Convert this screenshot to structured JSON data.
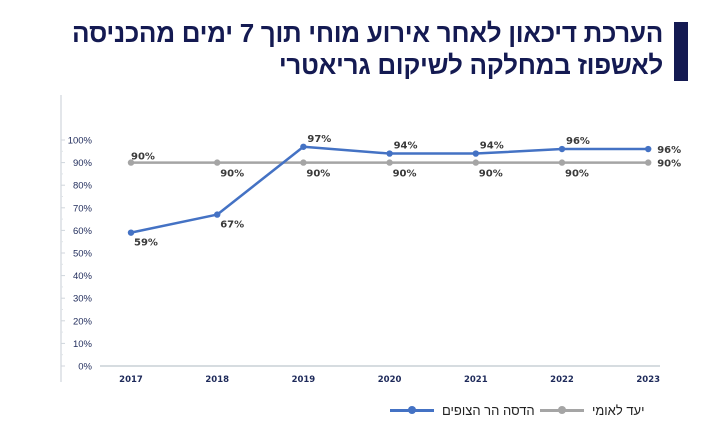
{
  "title": {
    "line1": "הערכת דיכאון לאחר אירוע מוחי תוך 7 ימים מהכניסה",
    "line2": "לאשפוז במחלקה לשיקום גריאטרי",
    "accent_color": "#141a52"
  },
  "chart_data": {
    "type": "line",
    "title": "הערכת דיכאון לאחר אירוע מוחי תוך 7 ימים מהכניסה לאשפוז במחלקה לשיקום גריאטרי",
    "xlabel": "",
    "ylabel": "",
    "categories": [
      "2017",
      "2018",
      "2019",
      "2020",
      "2021",
      "2022",
      "2023"
    ],
    "y_ticks": [
      "0%",
      "10%",
      "20%",
      "30%",
      "40%",
      "50%",
      "60%",
      "70%",
      "80%",
      "90%",
      "100%"
    ],
    "ylim": [
      0,
      100
    ],
    "grid": false,
    "legend_position": "bottom-right",
    "series": [
      {
        "name": "הדסה הר הצופים",
        "values": [
          59,
          67,
          97,
          94,
          94,
          96,
          96
        ],
        "labels": [
          "59%",
          "67%",
          "97%",
          "94%",
          "94%",
          "96%",
          "96%"
        ],
        "color": "#4472c4"
      },
      {
        "name": "יעד לאומי",
        "values": [
          90,
          90,
          90,
          90,
          90,
          90,
          90
        ],
        "labels": [
          "90%",
          "90%",
          "90%",
          "90%",
          "90%",
          "90%",
          "90%"
        ],
        "color": "#a5a5a5"
      }
    ]
  },
  "legend": {
    "hadassah": "הדסה הר הצופים",
    "national": "יעד לאומי"
  }
}
